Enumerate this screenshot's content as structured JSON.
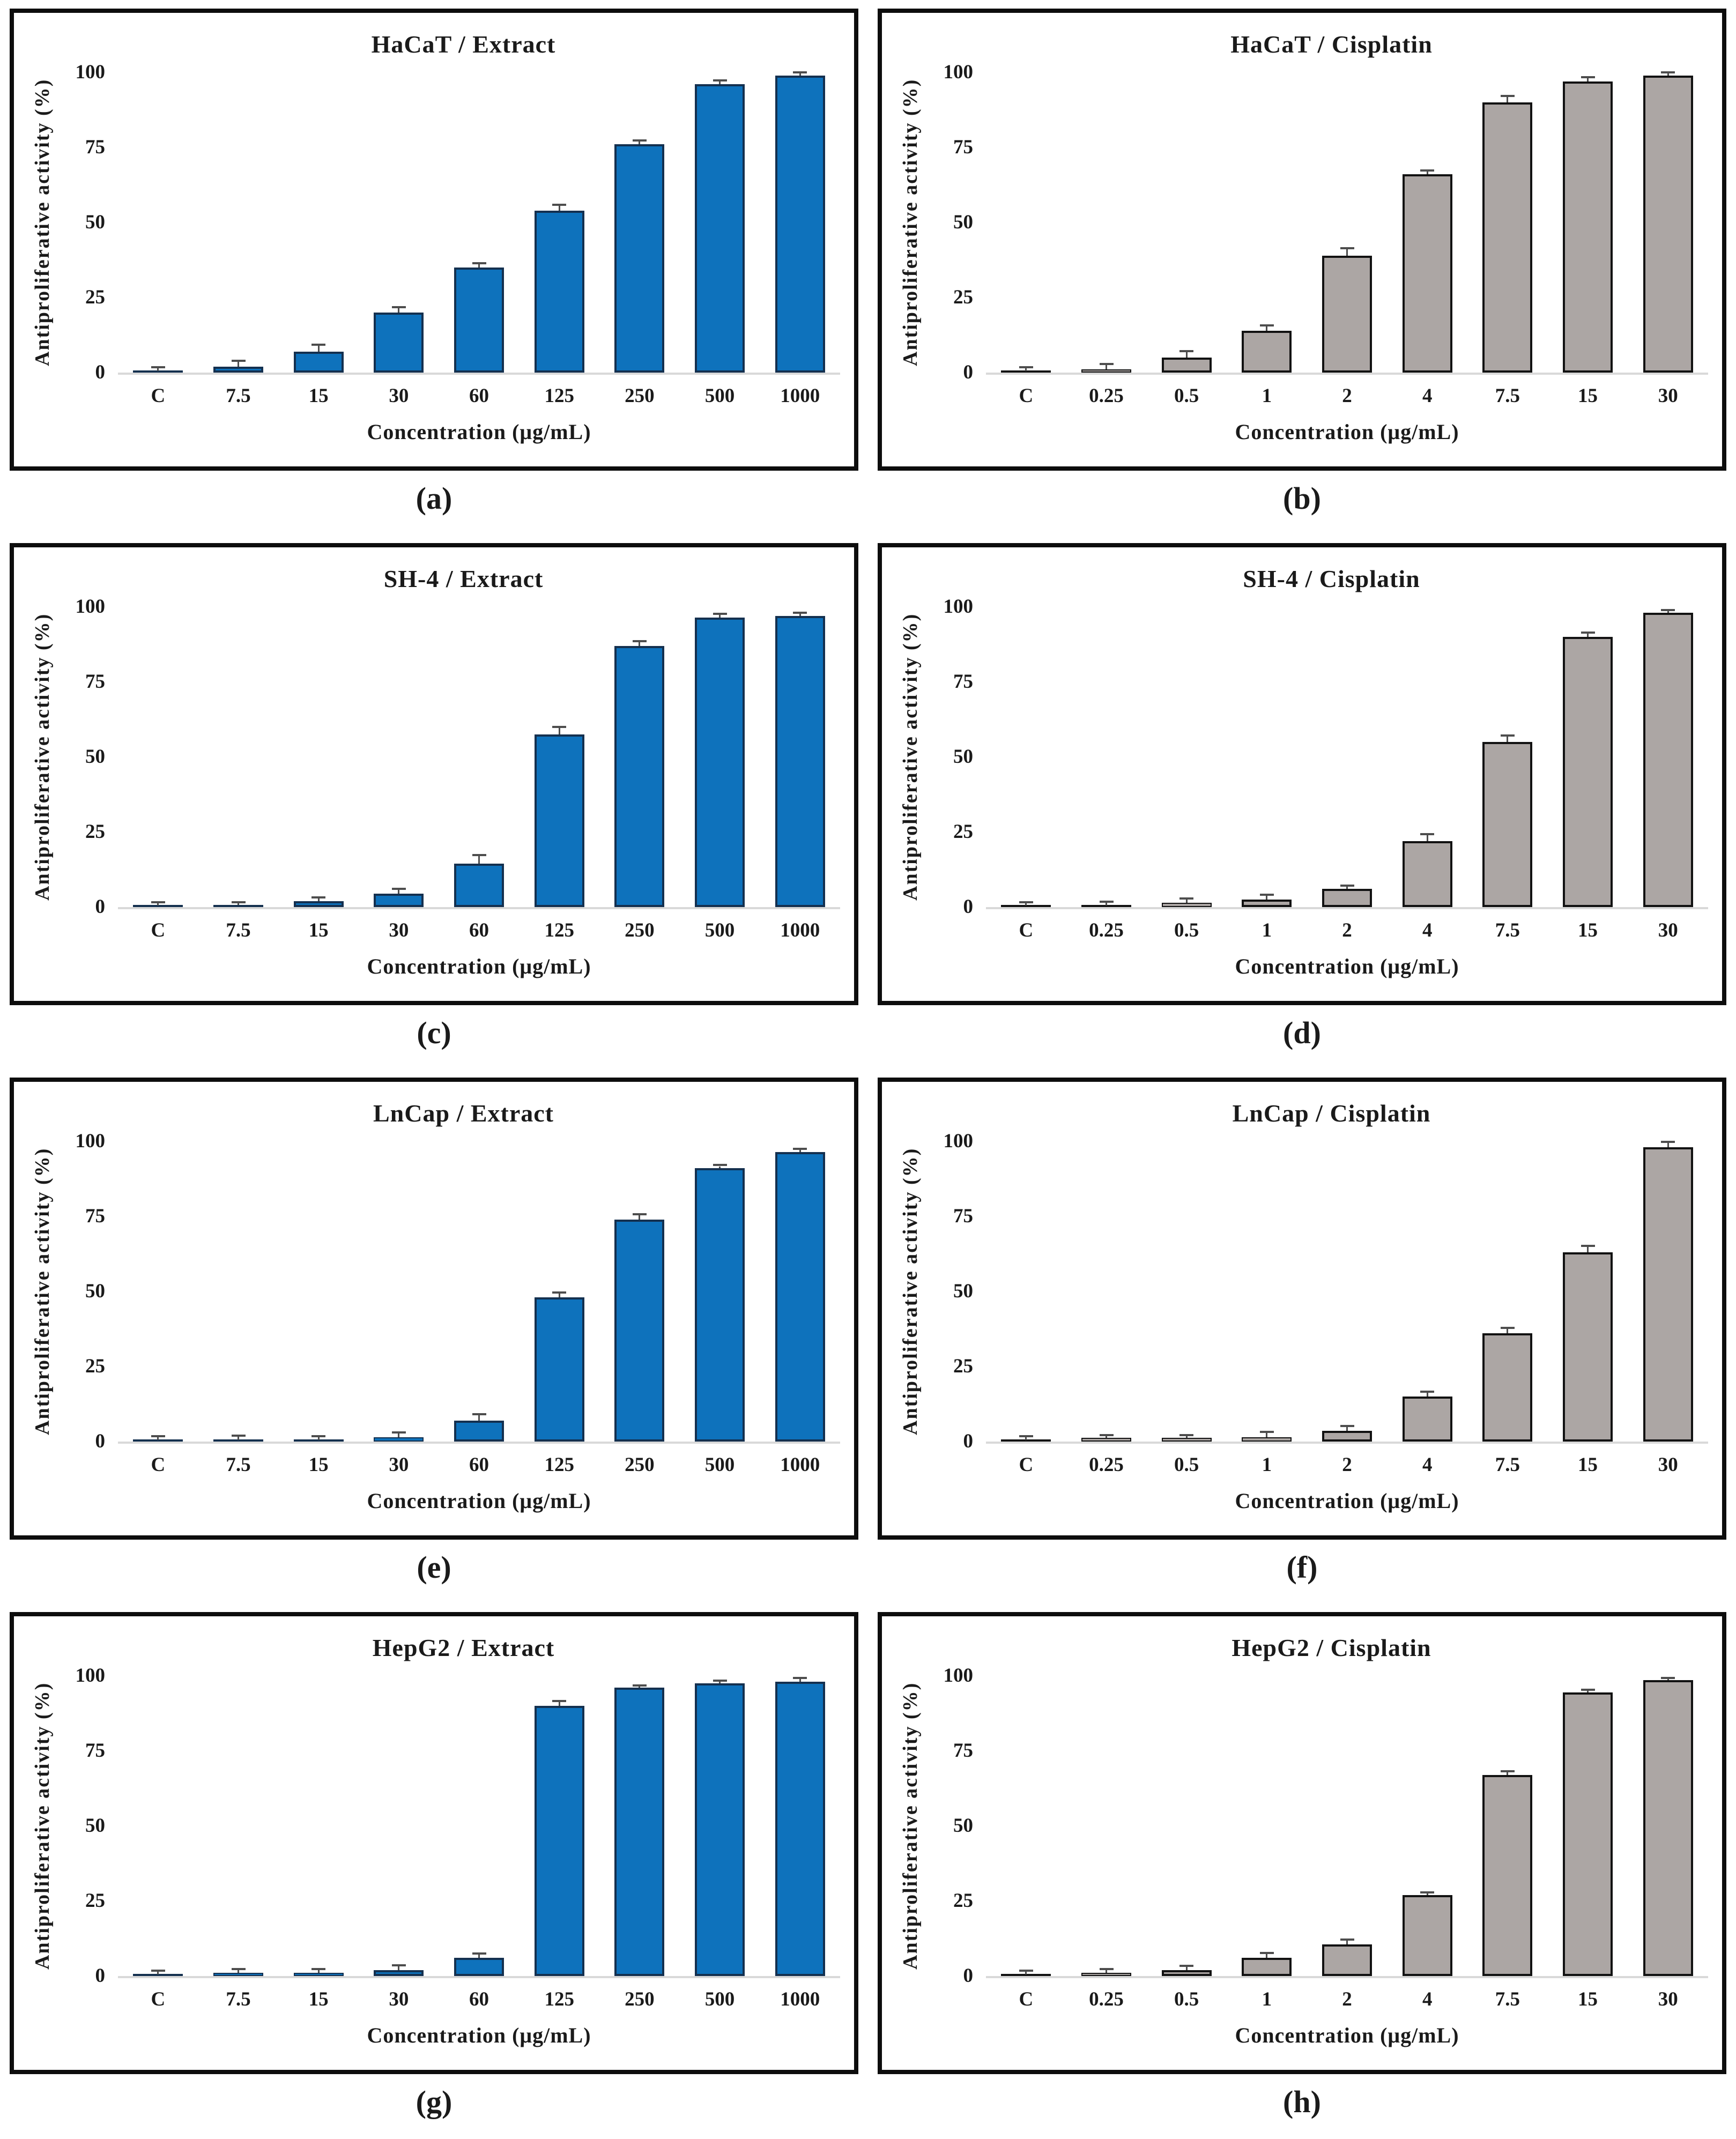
{
  "figure": {
    "ylabel": "Antiproliferative activity (%)",
    "xlabel": "Concentration (μg/mL)",
    "extract_color": "#0e72bc",
    "extract_border": "#14304f",
    "cisplatin_color": "#aca6a4",
    "cisplatin_border": "#121212",
    "baseline_color": "#d9d9d9",
    "error_bar_color": "#4d4d4d"
  },
  "chart_data": [
    {
      "type": "bar",
      "caption": "(a)",
      "title": "HaCaT / Extract",
      "xlabel": "Concentration (μg/mL)",
      "ylabel": "Antiproliferative activity (%)",
      "ylim": [
        0,
        100
      ],
      "yticks": [
        0,
        25,
        50,
        75,
        100
      ],
      "grid": false,
      "categories": [
        "C",
        "7.5",
        "15",
        "30",
        "60",
        "125",
        "250",
        "500",
        "1000"
      ],
      "values": [
        0.5,
        2,
        7,
        20,
        35,
        54,
        76,
        96,
        99
      ],
      "errors": [
        1,
        1.5,
        2,
        1.5,
        1,
        1.5,
        1,
        1,
        0.7
      ],
      "bar_color": "#0e72bc",
      "bar_border": "#14304f"
    },
    {
      "type": "bar",
      "caption": "(b)",
      "title": "HaCaT / Cisplatin",
      "xlabel": "Concentration (μg/mL)",
      "ylabel": "Antiproliferative activity (%)",
      "ylim": [
        0,
        100
      ],
      "yticks": [
        0,
        25,
        50,
        75,
        100
      ],
      "grid": false,
      "categories": [
        "C",
        "0.25",
        "0.5",
        "1",
        "2",
        "4",
        "7.5",
        "15",
        "30"
      ],
      "values": [
        0.5,
        1,
        5,
        14,
        39,
        66,
        90,
        97,
        99
      ],
      "errors": [
        1,
        1.5,
        1.8,
        1.3,
        2,
        1,
        1.8,
        1,
        0.7
      ],
      "bar_color": "#aca6a4",
      "bar_border": "#121212"
    },
    {
      "type": "bar",
      "caption": "(c)",
      "title": "SH-4 / Extract",
      "xlabel": "Concentration (μg/mL)",
      "ylabel": "Antiproliferative activity (%)",
      "ylim": [
        0,
        100
      ],
      "yticks": [
        0,
        25,
        50,
        75,
        100
      ],
      "grid": false,
      "categories": [
        "C",
        "7.5",
        "15",
        "30",
        "60",
        "125",
        "250",
        "500",
        "1000"
      ],
      "values": [
        0.5,
        0.7,
        2,
        4.5,
        14.5,
        57.5,
        87,
        96.5,
        97
      ],
      "errors": [
        0.7,
        0.5,
        0.8,
        1.3,
        2.5,
        2.2,
        1.2,
        0.8,
        0.6
      ],
      "bar_color": "#0e72bc",
      "bar_border": "#14304f"
    },
    {
      "type": "bar",
      "caption": "(d)",
      "title": "SH-4 / Cisplatin",
      "xlabel": "Concentration (μg/mL)",
      "ylabel": "Antiproliferative activity (%)",
      "ylim": [
        0,
        100
      ],
      "yticks": [
        0,
        25,
        50,
        75,
        100
      ],
      "grid": false,
      "categories": [
        "C",
        "0.25",
        "0.5",
        "1",
        "2",
        "4",
        "7.5",
        "15",
        "30"
      ],
      "values": [
        0.5,
        0.6,
        1.5,
        2.5,
        6,
        22,
        55,
        90,
        98
      ],
      "errors": [
        0.8,
        0.8,
        1,
        1.2,
        0.8,
        2,
        1.8,
        1,
        0.6
      ],
      "bar_color": "#aca6a4",
      "bar_border": "#121212"
    },
    {
      "type": "bar",
      "caption": "(e)",
      "title": "LnCap / Extract",
      "xlabel": "Concentration (μg/mL)",
      "ylabel": "Antiproliferative activity (%)",
      "ylim": [
        0,
        100
      ],
      "yticks": [
        0,
        25,
        50,
        75,
        100
      ],
      "grid": false,
      "categories": [
        "C",
        "7.5",
        "15",
        "30",
        "60",
        "125",
        "250",
        "500",
        "1000"
      ],
      "values": [
        0.5,
        0.6,
        0.6,
        1.5,
        7,
        48,
        74,
        91,
        96.5
      ],
      "errors": [
        0.9,
        1,
        0.9,
        1.2,
        1.8,
        1.2,
        1.3,
        0.7,
        0.6
      ],
      "bar_color": "#0e72bc",
      "bar_border": "#14304f"
    },
    {
      "type": "bar",
      "caption": "(f)",
      "title": "LnCap / Cisplatin",
      "xlabel": "Concentration (μg/mL)",
      "ylabel": "Antiproliferative activity (%)",
      "ylim": [
        0,
        100
      ],
      "yticks": [
        0,
        25,
        50,
        75,
        100
      ],
      "grid": false,
      "categories": [
        "C",
        "0.25",
        "0.5",
        "1",
        "2",
        "4",
        "7.5",
        "15",
        "30"
      ],
      "values": [
        0.5,
        1.2,
        1.2,
        1.5,
        3.5,
        15,
        36,
        63,
        98
      ],
      "errors": [
        0.9,
        0.6,
        0.6,
        1.3,
        1.3,
        1.2,
        1.5,
        1.8,
        1.5
      ],
      "bar_color": "#aca6a4",
      "bar_border": "#121212"
    },
    {
      "type": "bar",
      "caption": "(g)",
      "title": "HepG2 / Extract",
      "xlabel": "Concentration (μg/mL)",
      "ylabel": "Antiproliferative activity (%)",
      "ylim": [
        0,
        100
      ],
      "yticks": [
        0,
        25,
        50,
        75,
        100
      ],
      "grid": false,
      "categories": [
        "C",
        "7.5",
        "15",
        "30",
        "60",
        "125",
        "250",
        "500",
        "1000"
      ],
      "values": [
        0.5,
        1,
        1,
        2,
        6,
        90,
        96,
        97.5,
        98
      ],
      "errors": [
        0.9,
        0.9,
        0.9,
        1.3,
        1.2,
        1.3,
        0.5,
        0.6,
        0.9
      ],
      "bar_color": "#0e72bc",
      "bar_border": "#14304f"
    },
    {
      "type": "bar",
      "caption": "(h)",
      "title": "HepG2 / Cisplatin",
      "xlabel": "Concentration (μg/mL)",
      "ylabel": "Antiproliferative activity (%)",
      "ylim": [
        0,
        100
      ],
      "yticks": [
        0,
        25,
        50,
        75,
        100
      ],
      "grid": false,
      "categories": [
        "C",
        "0.25",
        "0.5",
        "1",
        "2",
        "4",
        "7.5",
        "15",
        "30"
      ],
      "values": [
        0.5,
        1,
        2,
        6,
        10.5,
        27,
        67,
        94.5,
        98.5
      ],
      "errors": [
        0.9,
        1,
        1,
        1.3,
        1.3,
        0.5,
        0.9,
        0.5,
        0.5
      ],
      "bar_color": "#aca6a4",
      "bar_border": "#121212"
    }
  ]
}
